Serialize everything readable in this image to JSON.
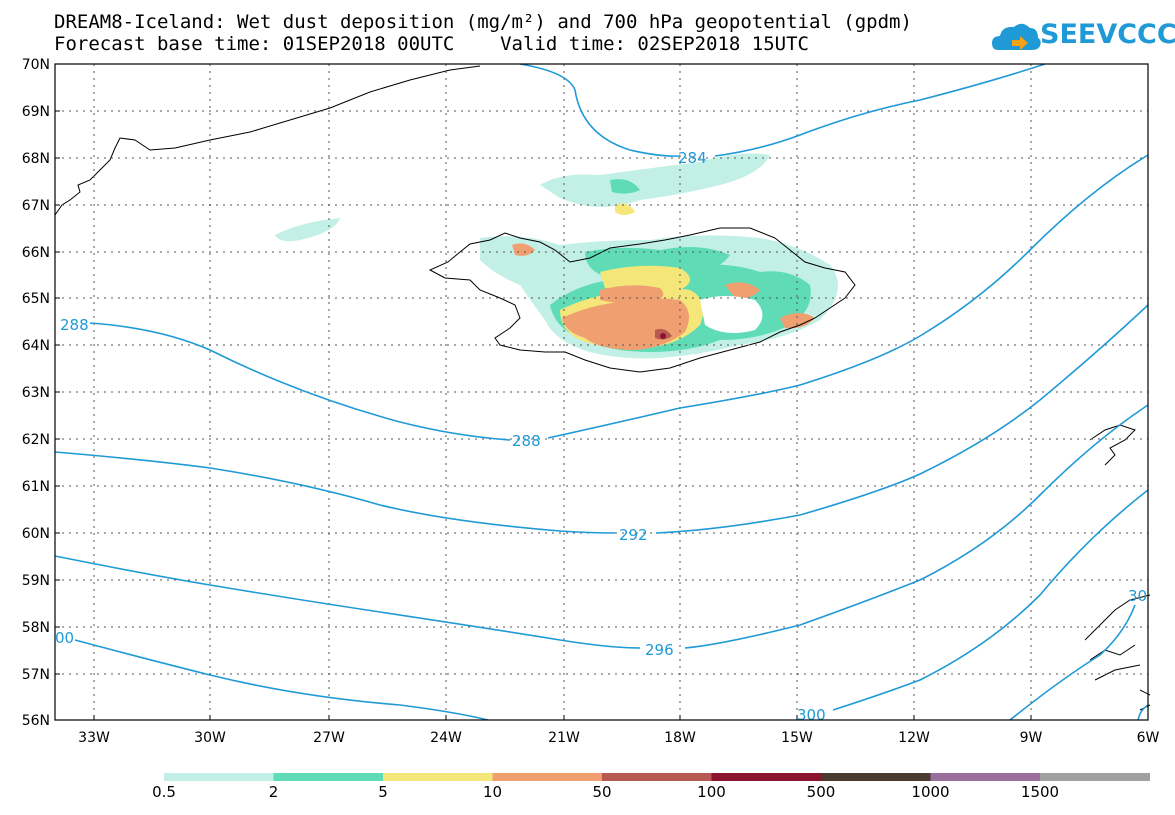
{
  "header": {
    "title_line1": "DREAM8-Iceland: Wet dust deposition (mg/m²) and 700 hPa geopotential (gpdm)",
    "title_line2": "Forecast base time: 01SEP2018 00UTC    Valid time: 02SEP2018 15UTC",
    "logo_text": "SEEVCCC",
    "logo_icon": "cloud-icon"
  },
  "map": {
    "lat_labels": [
      "70N",
      "69N",
      "68N",
      "67N",
      "66N",
      "65N",
      "64N",
      "63N",
      "62N",
      "61N",
      "60N",
      "59N",
      "58N",
      "57N",
      "56N"
    ],
    "lon_labels": [
      "33W",
      "30W",
      "27W",
      "24W",
      "21W",
      "18W",
      "15W",
      "12W",
      "9W",
      "6W"
    ],
    "contour_labels": [
      "284",
      "288",
      "288",
      "292",
      "296",
      "300",
      "00",
      "30"
    ],
    "contour_color": "#1f9ad6"
  },
  "legend": {
    "labels": [
      "0.5",
      "2",
      "5",
      "10",
      "50",
      "100",
      "500",
      "1000",
      "1500"
    ],
    "colors": [
      "#c2f0e7",
      "#5fdcb6",
      "#f5e67a",
      "#f0a070",
      "#b85a52",
      "#8c1430",
      "#4a3a2e",
      "#9a6f9e",
      "#a0a0a0"
    ]
  }
}
